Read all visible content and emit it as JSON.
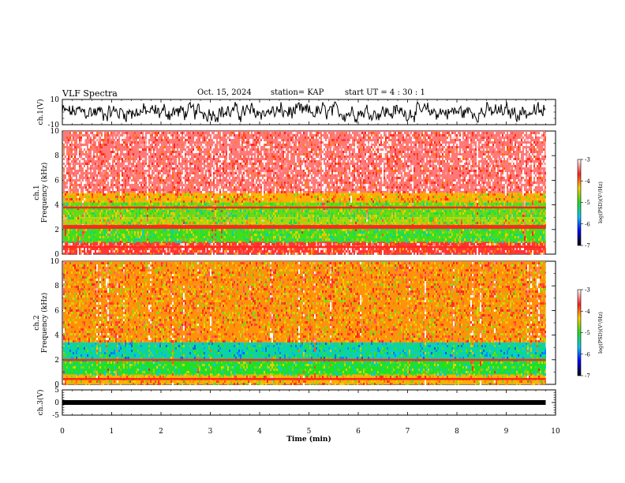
{
  "header": {
    "title": "VLF Spectra",
    "date": "Oct. 15, 2024",
    "station": "station= KAP",
    "start_ut": "start  UT =   4 : 30 : 1"
  },
  "colorbar": {
    "label": "log(PSD)(V²/Hz)",
    "ticks": [
      "-3",
      "-4",
      "-5",
      "-6",
      "-7"
    ],
    "stops": [
      "#ffffff",
      "#ff2020",
      "#ffd000",
      "#20e020",
      "#00c8ff",
      "#0000ff",
      "#000000"
    ]
  },
  "chart_data": [
    {
      "type": "line",
      "name": "ch1-waveform",
      "ylabel": "ch.1(V)",
      "ylim": [
        -10,
        10
      ],
      "yticks": [
        "10",
        "-10"
      ],
      "xlim": [
        0,
        10
      ],
      "data_extent_min": 9.8,
      "envelope_v": [
        -8,
        8
      ]
    },
    {
      "type": "heatmap",
      "name": "ch1-spectrogram",
      "ylabel": "ch.1 Frequency (kHz)",
      "ylim": [
        0,
        10
      ],
      "yticks": [
        "0",
        "2",
        "4",
        "6",
        "8",
        "10"
      ],
      "xlim": [
        0,
        10
      ],
      "data_extent_min": 9.8,
      "bands_khz": [
        {
          "from": 5.0,
          "to": 10.0,
          "log_psd": -3.4
        },
        {
          "from": 4.2,
          "to": 5.0,
          "log_psd": -4.2
        },
        {
          "from": 3.0,
          "to": 4.2,
          "log_psd": -4.8
        },
        {
          "from": 2.4,
          "to": 3.0,
          "log_psd": -4.6
        },
        {
          "from": 1.0,
          "to": 2.4,
          "log_psd": -4.9
        },
        {
          "from": 0.0,
          "to": 1.0,
          "log_psd": -3.6
        }
      ],
      "lines_khz": [
        3.8,
        2.3,
        2.15,
        0.6
      ]
    },
    {
      "type": "heatmap",
      "name": "ch2-spectrogram",
      "ylabel": "ch.2 Frequency (kHz)",
      "ylim": [
        0,
        10
      ],
      "yticks": [
        "0",
        "2",
        "4",
        "6",
        "8",
        "10"
      ],
      "xlim": [
        0,
        10
      ],
      "data_extent_min": 9.8,
      "bands_khz": [
        {
          "from": 3.4,
          "to": 10.0,
          "log_psd": -4.1
        },
        {
          "from": 2.0,
          "to": 3.4,
          "log_psd": -5.4
        },
        {
          "from": 0.8,
          "to": 2.0,
          "log_psd": -5.0
        },
        {
          "from": 0.0,
          "to": 0.8,
          "log_psd": -4.2
        }
      ],
      "lines_khz": [
        2.0,
        0.45
      ]
    },
    {
      "type": "line",
      "name": "ch3-waveform",
      "ylabel": "ch.3(V)",
      "ylim": [
        -5,
        5
      ],
      "yticks": [
        "5",
        "0",
        "-5"
      ],
      "xlim": [
        0,
        10
      ],
      "xlabel": "Time  (min)",
      "xticks": [
        "0",
        "1",
        "2",
        "3",
        "4",
        "5",
        "6",
        "7",
        "8",
        "9",
        "10"
      ],
      "data_extent_min": 9.8,
      "constant_v": 0
    }
  ]
}
